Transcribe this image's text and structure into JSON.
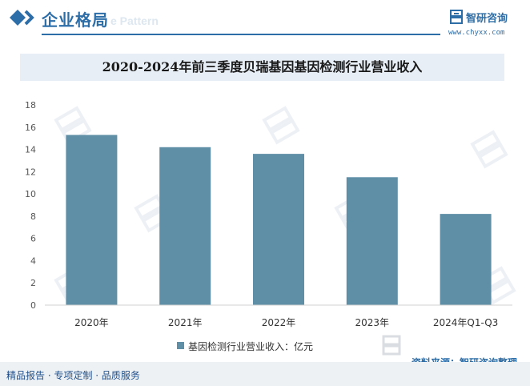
{
  "header": {
    "section_title": "企业格局",
    "section_ghost": "e Pattern",
    "brand_name": "智研咨询",
    "brand_url": "www.chyxx.com",
    "accent_color": "#2e6ea8"
  },
  "chart_data": {
    "type": "bar",
    "title": "2020-2024年前三季度贝瑞基因基因检测行业营业收入",
    "categories": [
      "2020年",
      "2021年",
      "2022年",
      "2023年",
      "2024年Q1-Q3"
    ],
    "series": [
      {
        "name": "基因检测行业营业收入：亿元",
        "values": [
          15.3,
          14.2,
          13.6,
          11.5,
          8.2
        ],
        "color": "#5f8fa7"
      }
    ],
    "ylim": [
      0,
      18
    ],
    "yticks": [
      0,
      2,
      4,
      6,
      8,
      10,
      12,
      14,
      16,
      18
    ],
    "xlabel": "",
    "ylabel": "",
    "grid": false,
    "legend_position": "bottom"
  },
  "footer": {
    "source": "资料来源：智研咨询整理",
    "tagline": "精品报告 · 专项定制 · 品质服务"
  }
}
